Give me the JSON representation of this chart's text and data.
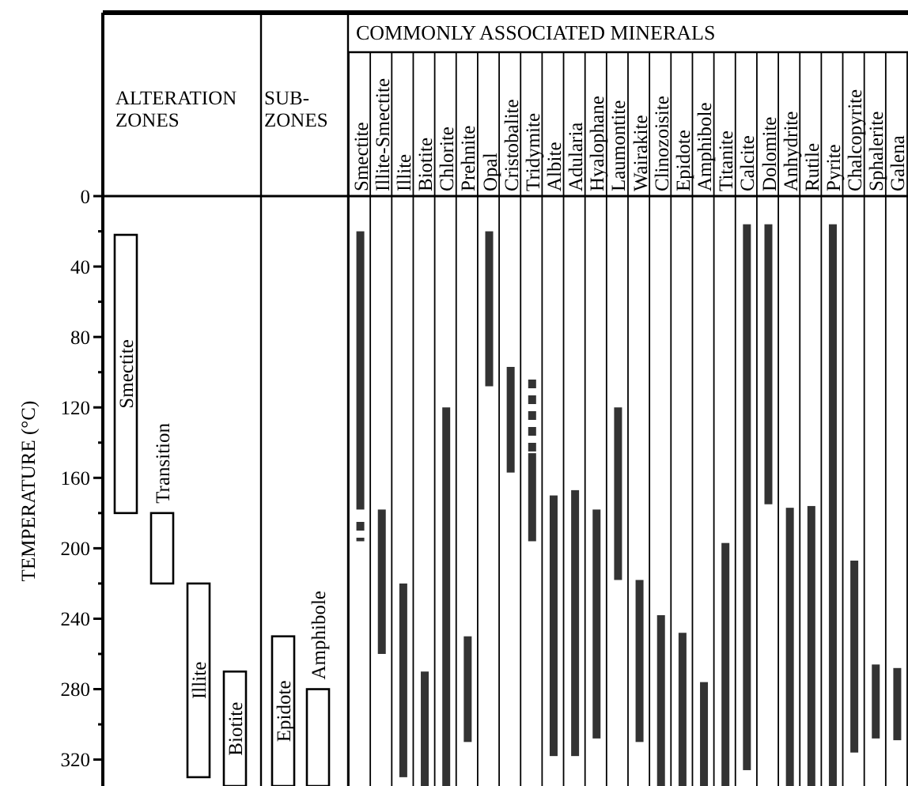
{
  "chart_data": [
    {
      "type": "bar",
      "title": "ALTERATION ZONES",
      "ylabel": "TEMPERATURE (°C)",
      "categories": [
        "Smectite",
        "Transition",
        "Illite",
        "Biotite"
      ],
      "series": [
        {
          "color": "#ffffff",
          "base": [
            22,
            180,
            220,
            270
          ],
          "values": [
            158,
            40,
            110,
            65
          ]
        }
      ],
      "ylim": [
        335,
        0
      ],
      "yticks": [
        0,
        {
          "value": 20,
          "label": null
        },
        40,
        {
          "value": 60,
          "label": null
        },
        80,
        {
          "value": 100,
          "label": null
        },
        120,
        {
          "value": 140,
          "label": null
        },
        160,
        {
          "value": 180,
          "label": null
        },
        200,
        {
          "value": 220,
          "label": null
        },
        240,
        {
          "value": 260,
          "label": null
        },
        280,
        {
          "value": 300,
          "label": null
        },
        320
      ]
    },
    {
      "type": "bar",
      "title": "SUB-ZONES",
      "categories": [
        "Epidote",
        "Amphibole"
      ],
      "series": [
        {
          "color": "#ffffff",
          "base": [
            250,
            280
          ],
          "values": [
            85,
            55
          ]
        }
      ],
      "ylim": [
        335,
        0
      ],
      "tick_labels": "x"
    },
    {
      "type": "bar",
      "title": "COMMONLY ASSOCIATED MINERALS",
      "categories": [
        "Smectite",
        "Illite-Smectite",
        "Illite",
        "Biotite",
        "Chlorite",
        "Prehnite",
        "Opal",
        "Cristobalite",
        "Tridymite",
        "Albite",
        "Adularia",
        "Hyalophane",
        "Laumontite",
        "Wairakite",
        "Clinozoisite",
        "Epidote",
        "Amphibole",
        "Titanite",
        "Calcite",
        "Dolomite",
        "Anhydrite",
        "Rutile",
        "Pyrite",
        "Chalcopyrite",
        "Sphalerite",
        "Galena"
      ],
      "series": [
        {
          "color": "#333333",
          "base": [
            20,
            178,
            220,
            270,
            120,
            250,
            20,
            97,
            146,
            170,
            167,
            178,
            120,
            218,
            238,
            248,
            276,
            197,
            16,
            16,
            177,
            176,
            16,
            207,
            266,
            268
          ],
          "values": [
            158,
            82,
            110,
            65,
            215,
            60,
            88,
            60,
            50,
            148,
            151,
            130,
            98,
            92,
            97,
            87,
            59,
            138,
            310,
            159,
            158,
            159,
            319,
            109,
            42,
            41
          ]
        },
        {
          "color": "#333333",
          "line_style": "dotted",
          "base": [
            183,
            null,
            null,
            null,
            null,
            null,
            null,
            null,
            103,
            null,
            null,
            null,
            null,
            null,
            null,
            null,
            null,
            null,
            null,
            null,
            null,
            null,
            null,
            null,
            null,
            null
          ],
          "values": [
            13,
            null,
            null,
            null,
            null,
            null,
            null,
            null,
            42,
            null,
            null,
            null,
            null,
            null,
            null,
            null,
            null,
            null,
            null,
            null,
            null,
            null,
            null,
            null,
            null,
            null
          ]
        }
      ],
      "ylim": [
        335,
        0
      ],
      "tick_labels": "x"
    }
  ]
}
